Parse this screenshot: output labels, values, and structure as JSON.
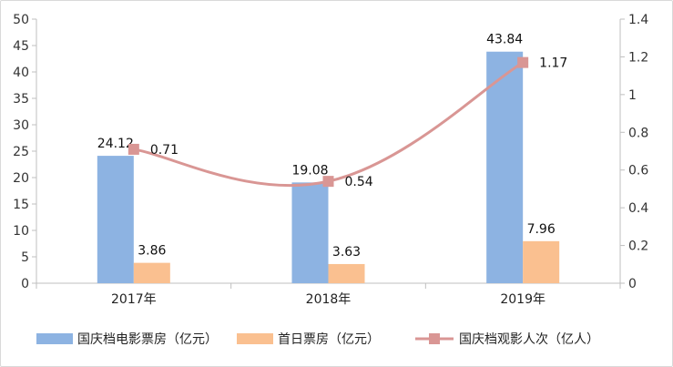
{
  "chart_data": {
    "type": "bar",
    "categories": [
      "2017年",
      "2018年",
      "2019年"
    ],
    "series": [
      {
        "name": "国庆档电影票房（亿元）",
        "type": "bar",
        "axis": "left",
        "color": "#8DB3E2",
        "values": [
          24.12,
          19.08,
          43.84
        ]
      },
      {
        "name": "首日票房（亿元）",
        "type": "bar",
        "axis": "left",
        "color": "#FAC090",
        "values": [
          3.86,
          3.63,
          7.96
        ]
      },
      {
        "name": "国庆档观影人次（亿人）",
        "type": "line",
        "axis": "right",
        "color": "#D99694",
        "values": [
          0.71,
          0.54,
          1.17
        ]
      }
    ],
    "left_axis": {
      "ylim": [
        0,
        50
      ],
      "ticks": [
        "0",
        "5",
        "10",
        "15",
        "20",
        "25",
        "30",
        "35",
        "40",
        "45",
        "50"
      ]
    },
    "right_axis": {
      "ylim": [
        0,
        1.4
      ],
      "ticks": [
        "0",
        "0.2",
        "0.4",
        "0.6",
        "0.8",
        "1",
        "1.2",
        "1.4"
      ]
    },
    "data_labels": {
      "bar1": [
        "24.12",
        "19.08",
        "43.84"
      ],
      "bar2": [
        "3.86",
        "3.63",
        "7.96"
      ],
      "line": [
        "0.71",
        "0.54",
        "1.17"
      ]
    },
    "gridlines": false,
    "legend": "bottom"
  }
}
